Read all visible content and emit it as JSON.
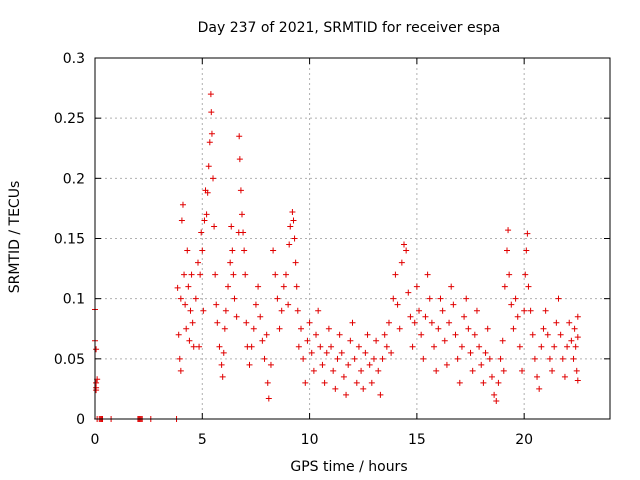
{
  "chart_data": {
    "type": "scatter",
    "title": "Day 237 of 2021, SRMTID for receiver espa",
    "xlabel": "GPS time / hours",
    "ylabel": "SRMTID / TECUs",
    "xlim": [
      0,
      24
    ],
    "ylim": [
      0,
      0.3
    ],
    "grid": true,
    "x_ticks": [
      {
        "value": 0,
        "label": "0"
      },
      {
        "value": 5,
        "label": "5"
      },
      {
        "value": 10,
        "label": "10"
      },
      {
        "value": 15,
        "label": "15"
      },
      {
        "value": 20,
        "label": "20"
      }
    ],
    "y_ticks": [
      {
        "value": 0,
        "label": "0"
      },
      {
        "value": 0.05,
        "label": "0.05"
      },
      {
        "value": 0.1,
        "label": "0.1"
      },
      {
        "value": 0.15,
        "label": "0.15"
      },
      {
        "value": 0.2,
        "label": "0.2"
      },
      {
        "value": 0.25,
        "label": "0.25"
      },
      {
        "value": 0.3,
        "label": "0.3"
      }
    ],
    "marker": "+",
    "color": "#e00000",
    "series": [
      {
        "name": "SRMTID",
        "points": [
          [
            0.0,
            0.091
          ],
          [
            0.0,
            0.065
          ],
          [
            0.05,
            0.058
          ],
          [
            0.05,
            0.03
          ],
          [
            0.05,
            0.026
          ],
          [
            0.05,
            0.024
          ],
          [
            0.1,
            0.033
          ],
          [
            0.1,
            0.0
          ],
          [
            0.2,
            0.0
          ],
          [
            0.25,
            0.0
          ],
          [
            0.3,
            0.0
          ],
          [
            0.35,
            0.0
          ],
          [
            0.75,
            0.0
          ],
          [
            2.0,
            0.0
          ],
          [
            2.05,
            0.0
          ],
          [
            2.1,
            0.0
          ],
          [
            2.15,
            0.0
          ],
          [
            2.2,
            0.0
          ],
          [
            2.6,
            0.0
          ],
          [
            3.8,
            0.0
          ],
          [
            3.85,
            0.109
          ],
          [
            3.9,
            0.07
          ],
          [
            3.95,
            0.05
          ],
          [
            4.0,
            0.04
          ],
          [
            4.0,
            0.1
          ],
          [
            4.05,
            0.165
          ],
          [
            4.1,
            0.178
          ],
          [
            4.15,
            0.12
          ],
          [
            4.2,
            0.095
          ],
          [
            4.25,
            0.075
          ],
          [
            4.3,
            0.14
          ],
          [
            4.35,
            0.11
          ],
          [
            4.4,
            0.065
          ],
          [
            4.45,
            0.09
          ],
          [
            4.5,
            0.12
          ],
          [
            4.55,
            0.08
          ],
          [
            4.6,
            0.06
          ],
          [
            4.7,
            0.1
          ],
          [
            4.8,
            0.13
          ],
          [
            4.85,
            0.06
          ],
          [
            4.9,
            0.12
          ],
          [
            4.95,
            0.155
          ],
          [
            5.0,
            0.14
          ],
          [
            5.05,
            0.09
          ],
          [
            5.1,
            0.165
          ],
          [
            5.15,
            0.19
          ],
          [
            5.2,
            0.17
          ],
          [
            5.25,
            0.188
          ],
          [
            5.3,
            0.21
          ],
          [
            5.35,
            0.23
          ],
          [
            5.4,
            0.27
          ],
          [
            5.42,
            0.255
          ],
          [
            5.45,
            0.237
          ],
          [
            5.5,
            0.2
          ],
          [
            5.55,
            0.16
          ],
          [
            5.6,
            0.12
          ],
          [
            5.65,
            0.095
          ],
          [
            5.7,
            0.08
          ],
          [
            5.8,
            0.06
          ],
          [
            5.9,
            0.045
          ],
          [
            5.95,
            0.035
          ],
          [
            6.0,
            0.055
          ],
          [
            6.05,
            0.075
          ],
          [
            6.1,
            0.09
          ],
          [
            6.2,
            0.11
          ],
          [
            6.3,
            0.13
          ],
          [
            6.35,
            0.16
          ],
          [
            6.4,
            0.14
          ],
          [
            6.45,
            0.12
          ],
          [
            6.5,
            0.1
          ],
          [
            6.6,
            0.085
          ],
          [
            6.7,
            0.155
          ],
          [
            6.72,
            0.235
          ],
          [
            6.75,
            0.216
          ],
          [
            6.8,
            0.19
          ],
          [
            6.85,
            0.17
          ],
          [
            6.9,
            0.155
          ],
          [
            6.95,
            0.14
          ],
          [
            7.0,
            0.12
          ],
          [
            7.05,
            0.08
          ],
          [
            7.1,
            0.06
          ],
          [
            7.2,
            0.045
          ],
          [
            7.3,
            0.06
          ],
          [
            7.4,
            0.075
          ],
          [
            7.5,
            0.095
          ],
          [
            7.6,
            0.11
          ],
          [
            7.7,
            0.085
          ],
          [
            7.8,
            0.065
          ],
          [
            7.9,
            0.05
          ],
          [
            8.0,
            0.07
          ],
          [
            8.05,
            0.03
          ],
          [
            8.1,
            0.017
          ],
          [
            8.2,
            0.045
          ],
          [
            8.3,
            0.14
          ],
          [
            8.4,
            0.12
          ],
          [
            8.5,
            0.1
          ],
          [
            8.6,
            0.075
          ],
          [
            8.7,
            0.09
          ],
          [
            8.8,
            0.11
          ],
          [
            8.9,
            0.12
          ],
          [
            9.0,
            0.095
          ],
          [
            9.05,
            0.145
          ],
          [
            9.1,
            0.16
          ],
          [
            9.2,
            0.172
          ],
          [
            9.25,
            0.165
          ],
          [
            9.3,
            0.15
          ],
          [
            9.35,
            0.13
          ],
          [
            9.4,
            0.11
          ],
          [
            9.45,
            0.09
          ],
          [
            9.5,
            0.06
          ],
          [
            9.6,
            0.075
          ],
          [
            9.7,
            0.05
          ],
          [
            9.8,
            0.03
          ],
          [
            9.9,
            0.065
          ],
          [
            10.0,
            0.08
          ],
          [
            10.1,
            0.055
          ],
          [
            10.2,
            0.04
          ],
          [
            10.3,
            0.07
          ],
          [
            10.4,
            0.09
          ],
          [
            10.5,
            0.06
          ],
          [
            10.6,
            0.045
          ],
          [
            10.7,
            0.03
          ],
          [
            10.8,
            0.055
          ],
          [
            10.9,
            0.075
          ],
          [
            11.0,
            0.06
          ],
          [
            11.1,
            0.04
          ],
          [
            11.2,
            0.025
          ],
          [
            11.3,
            0.05
          ],
          [
            11.4,
            0.07
          ],
          [
            11.5,
            0.055
          ],
          [
            11.6,
            0.035
          ],
          [
            11.7,
            0.02
          ],
          [
            11.8,
            0.045
          ],
          [
            11.9,
            0.065
          ],
          [
            12.0,
            0.08
          ],
          [
            12.1,
            0.05
          ],
          [
            12.2,
            0.03
          ],
          [
            12.3,
            0.06
          ],
          [
            12.4,
            0.04
          ],
          [
            12.5,
            0.025
          ],
          [
            12.6,
            0.055
          ],
          [
            12.7,
            0.07
          ],
          [
            12.8,
            0.045
          ],
          [
            12.9,
            0.03
          ],
          [
            13.0,
            0.05
          ],
          [
            13.1,
            0.065
          ],
          [
            13.2,
            0.04
          ],
          [
            13.3,
            0.02
          ],
          [
            13.4,
            0.05
          ],
          [
            13.5,
            0.07
          ],
          [
            13.6,
            0.06
          ],
          [
            13.7,
            0.08
          ],
          [
            13.8,
            0.055
          ],
          [
            13.9,
            0.1
          ],
          [
            14.0,
            0.12
          ],
          [
            14.1,
            0.095
          ],
          [
            14.2,
            0.075
          ],
          [
            14.3,
            0.13
          ],
          [
            14.4,
            0.145
          ],
          [
            14.5,
            0.14
          ],
          [
            14.6,
            0.105
          ],
          [
            14.7,
            0.085
          ],
          [
            14.8,
            0.06
          ],
          [
            14.9,
            0.08
          ],
          [
            15.0,
            0.11
          ],
          [
            15.1,
            0.09
          ],
          [
            15.2,
            0.07
          ],
          [
            15.3,
            0.05
          ],
          [
            15.4,
            0.085
          ],
          [
            15.5,
            0.12
          ],
          [
            15.6,
            0.1
          ],
          [
            15.7,
            0.08
          ],
          [
            15.8,
            0.06
          ],
          [
            15.9,
            0.04
          ],
          [
            16.0,
            0.075
          ],
          [
            16.1,
            0.1
          ],
          [
            16.2,
            0.09
          ],
          [
            16.3,
            0.065
          ],
          [
            16.4,
            0.045
          ],
          [
            16.5,
            0.08
          ],
          [
            16.6,
            0.11
          ],
          [
            16.7,
            0.095
          ],
          [
            16.8,
            0.07
          ],
          [
            16.9,
            0.05
          ],
          [
            17.0,
            0.03
          ],
          [
            17.1,
            0.06
          ],
          [
            17.2,
            0.085
          ],
          [
            17.3,
            0.1
          ],
          [
            17.4,
            0.075
          ],
          [
            17.5,
            0.055
          ],
          [
            17.6,
            0.04
          ],
          [
            17.7,
            0.07
          ],
          [
            17.8,
            0.09
          ],
          [
            17.9,
            0.06
          ],
          [
            18.0,
            0.045
          ],
          [
            18.1,
            0.03
          ],
          [
            18.2,
            0.055
          ],
          [
            18.3,
            0.075
          ],
          [
            18.4,
            0.05
          ],
          [
            18.5,
            0.035
          ],
          [
            18.6,
            0.02
          ],
          [
            18.7,
            0.015
          ],
          [
            18.8,
            0.03
          ],
          [
            18.9,
            0.05
          ],
          [
            19.0,
            0.065
          ],
          [
            19.05,
            0.04
          ],
          [
            19.1,
            0.11
          ],
          [
            19.2,
            0.14
          ],
          [
            19.25,
            0.157
          ],
          [
            19.3,
            0.12
          ],
          [
            19.4,
            0.095
          ],
          [
            19.5,
            0.075
          ],
          [
            19.6,
            0.1
          ],
          [
            19.7,
            0.085
          ],
          [
            19.8,
            0.06
          ],
          [
            19.9,
            0.04
          ],
          [
            20.0,
            0.09
          ],
          [
            20.05,
            0.12
          ],
          [
            20.1,
            0.14
          ],
          [
            20.15,
            0.154
          ],
          [
            20.2,
            0.11
          ],
          [
            20.3,
            0.09
          ],
          [
            20.4,
            0.07
          ],
          [
            20.5,
            0.05
          ],
          [
            20.6,
            0.035
          ],
          [
            20.7,
            0.025
          ],
          [
            20.8,
            0.06
          ],
          [
            20.9,
            0.075
          ],
          [
            21.0,
            0.09
          ],
          [
            21.1,
            0.07
          ],
          [
            21.2,
            0.05
          ],
          [
            21.3,
            0.04
          ],
          [
            21.4,
            0.06
          ],
          [
            21.5,
            0.08
          ],
          [
            21.6,
            0.1
          ],
          [
            21.7,
            0.07
          ],
          [
            21.8,
            0.05
          ],
          [
            21.9,
            0.035
          ],
          [
            22.0,
            0.06
          ],
          [
            22.1,
            0.08
          ],
          [
            22.2,
            0.065
          ],
          [
            22.3,
            0.05
          ],
          [
            22.35,
            0.075
          ],
          [
            22.4,
            0.06
          ],
          [
            22.45,
            0.04
          ],
          [
            22.5,
            0.032
          ],
          [
            22.5,
            0.085
          ],
          [
            22.5,
            0.068
          ]
        ]
      }
    ]
  }
}
